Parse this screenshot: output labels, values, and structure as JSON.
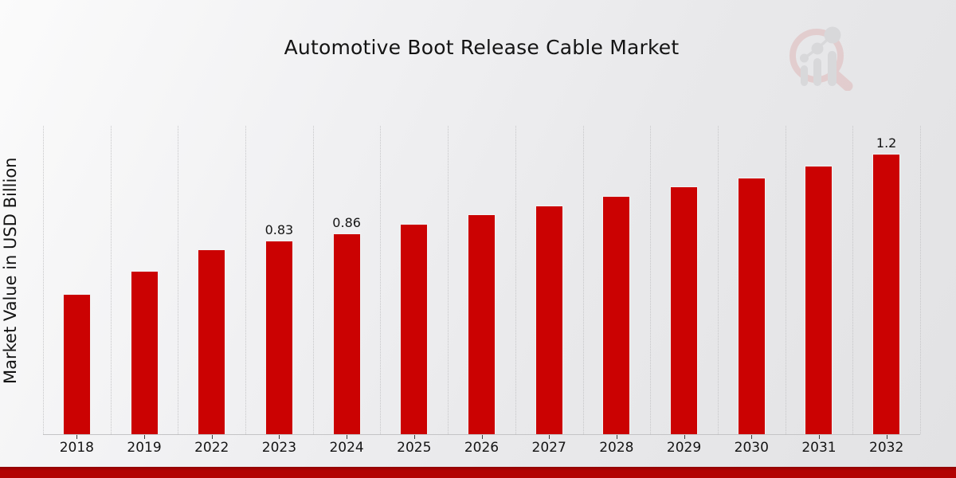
{
  "header": {
    "title": "Automotive Boot Release Cable Market"
  },
  "watermark": {
    "icon": "magnifier-bar-chart-logo"
  },
  "footer": {
    "accent_color": "#b30303"
  },
  "colors": {
    "bar": "#cb0202",
    "bar_edge": "#f2f2f2",
    "grid": "#c6c6c8",
    "text": "#141414",
    "footer_stripe": "#b30303"
  },
  "chart_data": {
    "type": "bar",
    "title": "Automotive Boot Release Cable Market",
    "xlabel": "",
    "ylabel": "Market Value in USD Billion",
    "categories": [
      "2018",
      "2019",
      "2022",
      "2023",
      "2024",
      "2025",
      "2026",
      "2027",
      "2028",
      "2029",
      "2030",
      "2031",
      "2032"
    ],
    "values": [
      0.6,
      0.7,
      0.79,
      0.83,
      0.86,
      0.9,
      0.94,
      0.98,
      1.02,
      1.06,
      1.1,
      1.15,
      1.2
    ],
    "value_labels": [
      "",
      "",
      "",
      "0.83",
      "0.86",
      "",
      "",
      "",
      "",
      "",
      "",
      "",
      "1.2"
    ],
    "ylim": [
      0,
      1.32
    ],
    "grid": "vertical-dotted",
    "legend": "none",
    "bar_color": "#cb0202"
  }
}
